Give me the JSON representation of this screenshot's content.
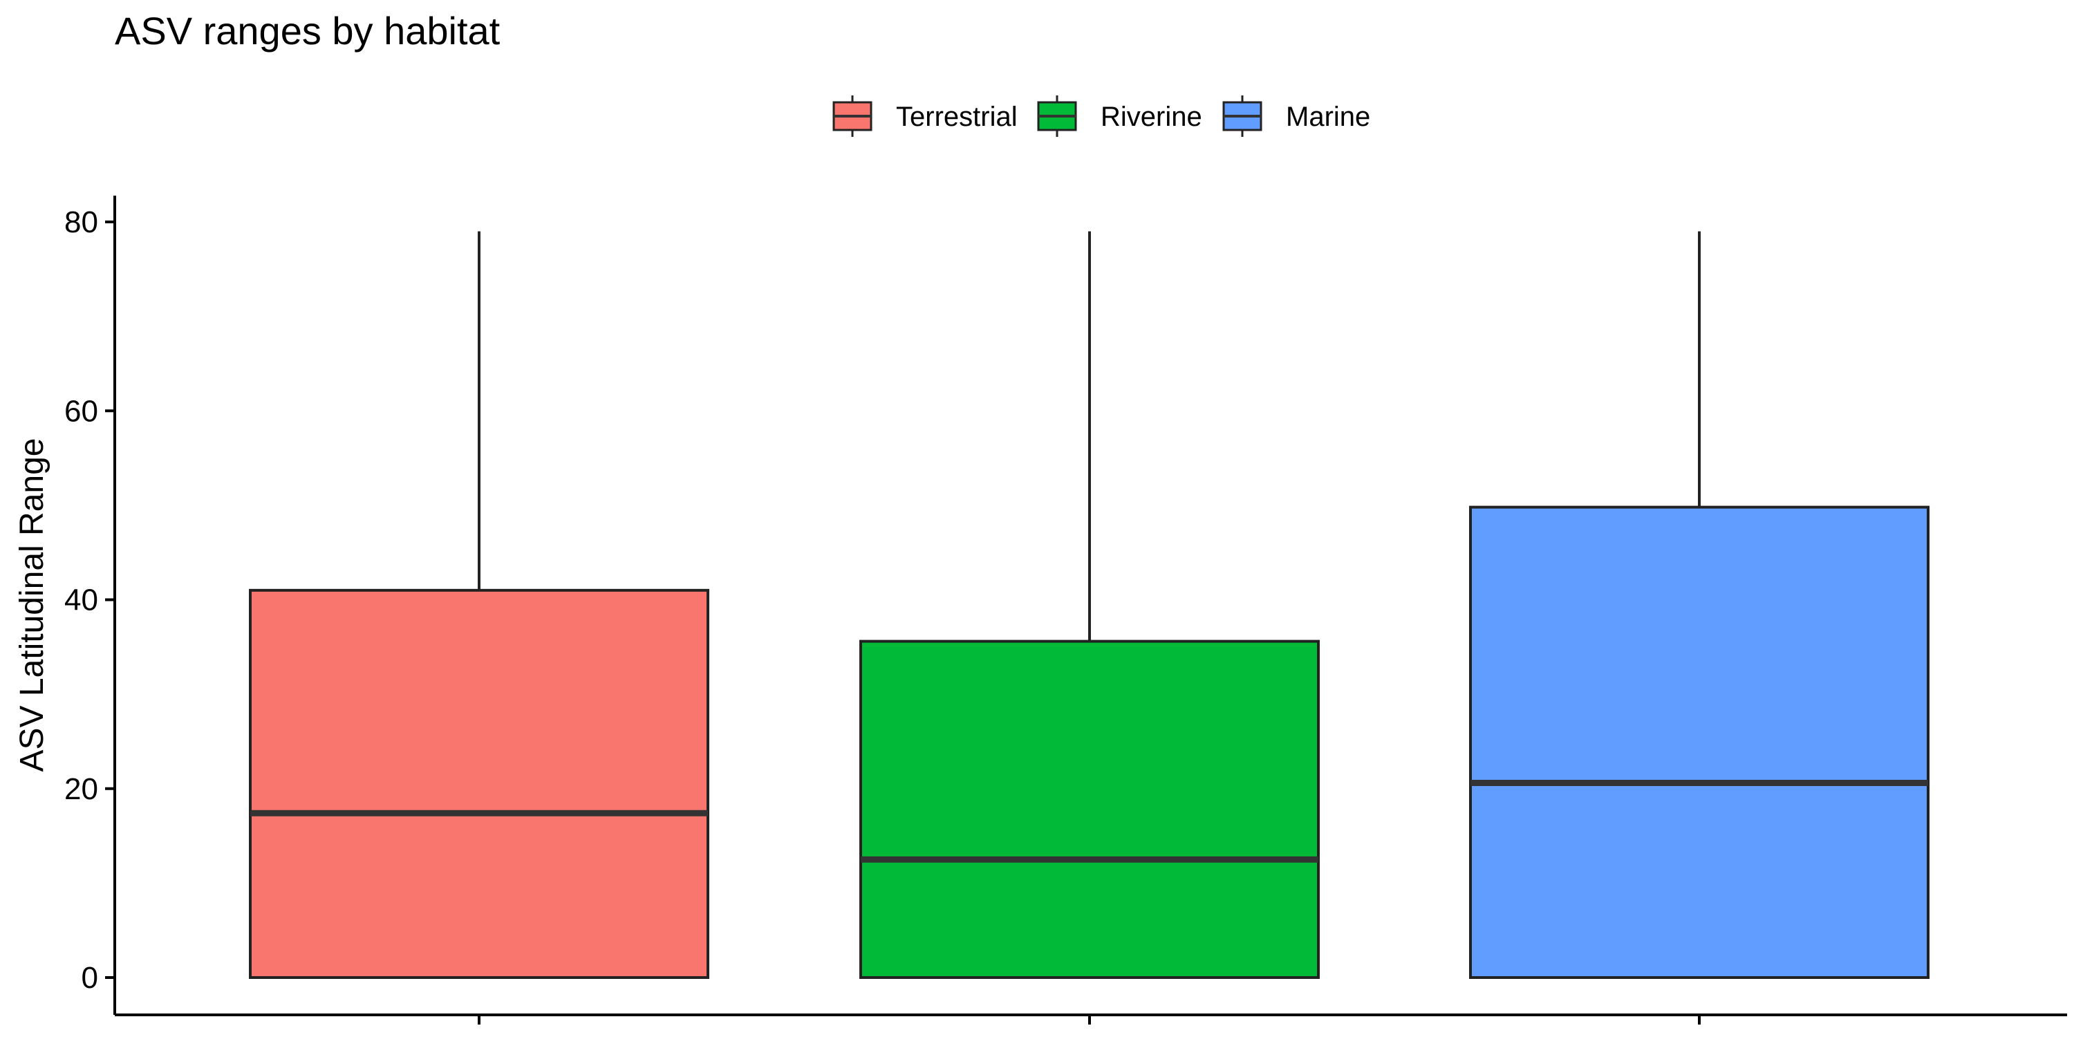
{
  "chart_data": {
    "type": "boxplot",
    "title": "ASV ranges by habitat",
    "xlabel": "",
    "ylabel": "ASV Latitudinal Range",
    "ylim": [
      -3.5,
      83
    ],
    "yticks": [
      0,
      20,
      40,
      60,
      80
    ],
    "grid": false,
    "legend_position": "top",
    "categories": [
      "Terrestrial",
      "Riverine",
      "Marine"
    ],
    "series": [
      {
        "name": "Terrestrial",
        "color": "#F8766D",
        "min": 0,
        "q1": 0,
        "median": 17.4,
        "q3": 41.0,
        "max": 79.0
      },
      {
        "name": "Riverine",
        "color": "#00BA38",
        "min": 0,
        "q1": 0,
        "median": 12.5,
        "q3": 35.6,
        "max": 79.0
      },
      {
        "name": "Marine",
        "color": "#619CFF",
        "min": 0,
        "q1": 0,
        "median": 20.6,
        "q3": 49.8,
        "max": 79.0
      }
    ]
  }
}
